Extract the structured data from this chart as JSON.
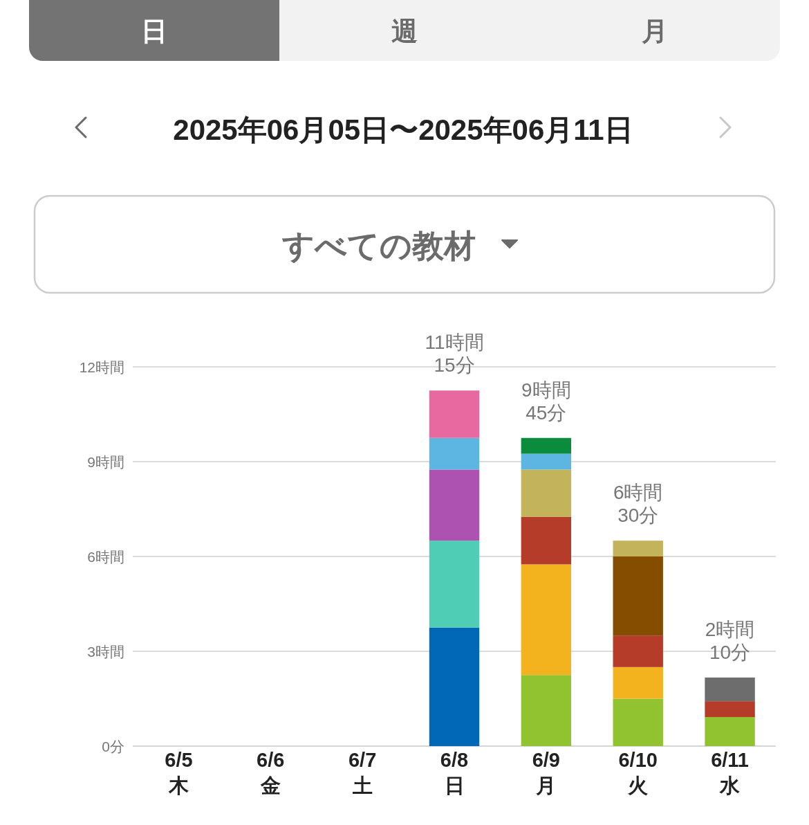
{
  "chart_data": {
    "type": "bar",
    "title": "2025年06月05日〜2025年06月11日",
    "subtitle": "すべての教材",
    "annotations": [
      "日",
      "週",
      "月"
    ],
    "categories": [
      "6/5\n木",
      "6/6\n金",
      "6/7\n土",
      "6/8\n日",
      "6/9\n月",
      "6/10\n火",
      "6/11\n水"
    ],
    "series": [
      {
        "color": "#0068b7",
        "values": [
          null,
          null,
          null,
          3.75,
          null,
          null,
          null
        ]
      },
      {
        "color": "#4fcdb5",
        "values": [
          null,
          null,
          null,
          2.75,
          null,
          null,
          null
        ]
      },
      {
        "color": "#ad52b0",
        "values": [
          null,
          null,
          null,
          2.25,
          null,
          null,
          null
        ]
      },
      {
        "color": "#91c230",
        "values": [
          null,
          null,
          null,
          null,
          2.25,
          1.5,
          0.92
        ]
      },
      {
        "color": "#f2b31f",
        "values": [
          null,
          null,
          null,
          null,
          3.5,
          1.0,
          null
        ]
      },
      {
        "color": "#b53c29",
        "values": [
          null,
          null,
          null,
          null,
          1.5,
          1.0,
          0.5
        ]
      },
      {
        "color": "#854d00",
        "values": [
          null,
          null,
          null,
          null,
          null,
          2.5,
          null
        ]
      },
      {
        "color": "#6d6d6d",
        "values": [
          null,
          null,
          null,
          null,
          null,
          null,
          0.75
        ]
      },
      {
        "color": "#c3b35b",
        "values": [
          null,
          null,
          null,
          null,
          1.5,
          0.5,
          null
        ]
      },
      {
        "color": "#5db6e1",
        "values": [
          null,
          null,
          null,
          1.0,
          0.5,
          null,
          null
        ]
      },
      {
        "color": "#e8699f",
        "values": [
          null,
          null,
          null,
          1.5,
          null,
          null,
          null
        ]
      },
      {
        "color": "#0b8c3c",
        "values": [
          null,
          null,
          null,
          null,
          0.5,
          null,
          null
        ]
      }
    ],
    "stacked": true,
    "totals": [
      null,
      null,
      null,
      "11時間\n15分",
      "9時間\n45分",
      "6時間\n30分",
      "2時間\n10分"
    ],
    "ylim": [
      0,
      12
    ],
    "yticks": [
      {
        "value": 0,
        "label": "0分"
      },
      {
        "value": 3,
        "label": "3時間"
      },
      {
        "value": 6,
        "label": "6時間"
      },
      {
        "value": 9,
        "label": "9時間"
      },
      {
        "value": 12,
        "label": "12時間"
      }
    ],
    "grid": "y"
  }
}
